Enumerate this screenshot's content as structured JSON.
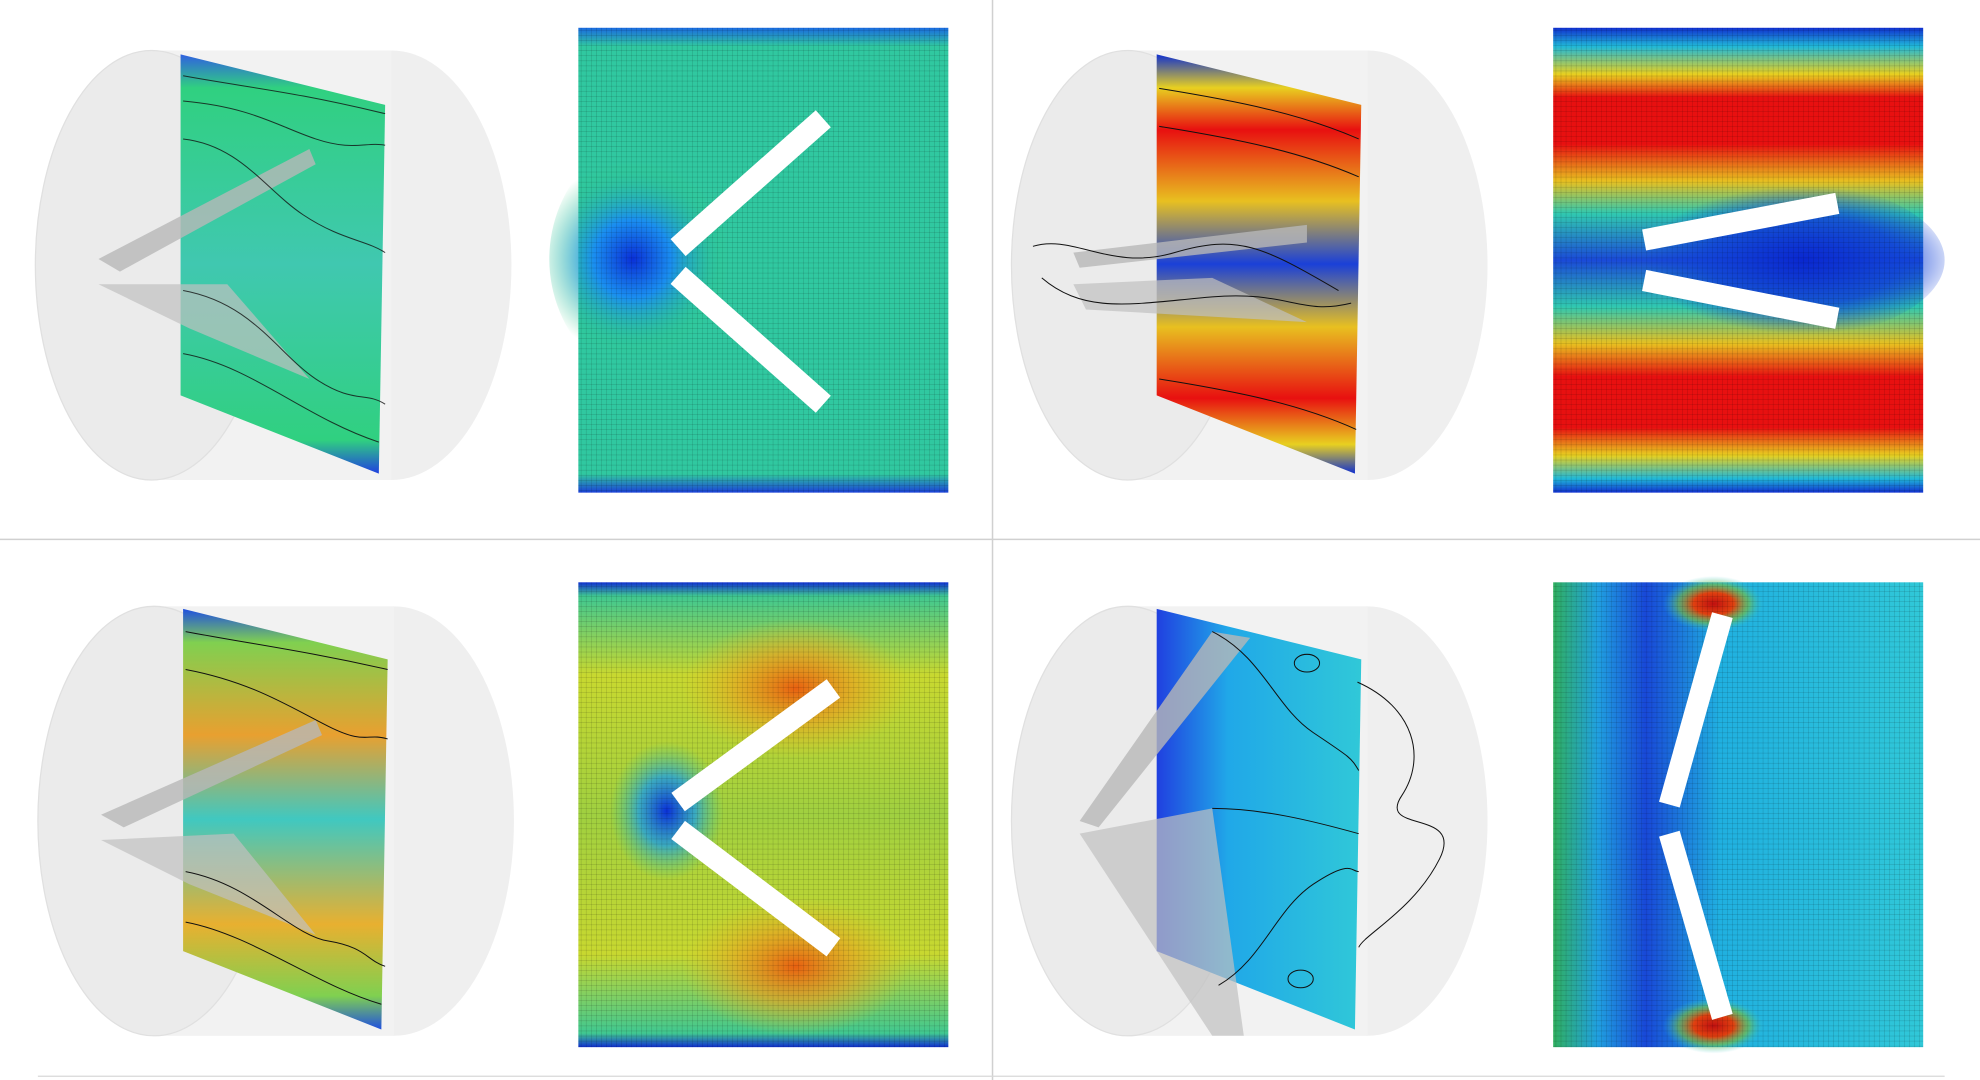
{
  "figure": {
    "panels": [
      {
        "id": "top-left",
        "colormap": "jet",
        "dominant_color": "#2fd07a",
        "low_color": "#0a2fd0"
      },
      {
        "id": "top-right",
        "colormap": "jet",
        "dominant_color": "#e81010",
        "low_color": "#0a2fd0"
      },
      {
        "id": "bottom-left",
        "colormap": "jet",
        "dominant_color": "#e8d020",
        "low_color": "#0a2fd0"
      },
      {
        "id": "bottom-right",
        "colormap": "jet",
        "dominant_color": "#20c8d8",
        "low_color": "#0a2fd0"
      }
    ],
    "colors": {
      "background": "#ffffff",
      "divider": "#d0d0d0",
      "obstacle": "#ffffff",
      "cylinder": "#e8e8e8"
    }
  }
}
